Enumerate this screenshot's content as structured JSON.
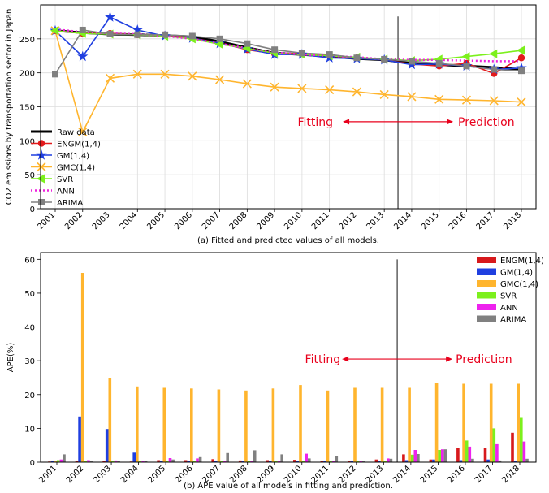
{
  "chart_data": [
    {
      "type": "line",
      "caption": "(a) Fitted and predicted values of all models.",
      "ylabel": "CO2 emissions by transportation sector in Japan",
      "xlabel": "",
      "x": [
        "2001",
        "2002",
        "2003",
        "2004",
        "2005",
        "2006",
        "2007",
        "2008",
        "2009",
        "2010",
        "2011",
        "2012",
        "2013",
        "2014",
        "2015",
        "2016",
        "2017",
        "2018"
      ],
      "ylim": [
        0,
        300
      ],
      "yticks": [
        0,
        50,
        100,
        150,
        200,
        250
      ],
      "grid": true,
      "legend_position": "bottom-left",
      "divider_after": "2013",
      "annotation_left": "Fitting",
      "annotation_right": "Prediction",
      "colors": {
        "divider": "#555555",
        "annotation": "#e8001c"
      },
      "series": [
        {
          "name": "Raw data",
          "color": "#000000",
          "style": "solid-thick",
          "marker": "none",
          "values": [
            262,
            259,
            257,
            256,
            255,
            253,
            246,
            237,
            229,
            227,
            224,
            221,
            219,
            214,
            212,
            210,
            208,
            205
          ]
        },
        {
          "name": "ENGM(1,4)",
          "color": "#e31a1c",
          "style": "solid",
          "marker": "circle",
          "values": [
            262,
            258,
            258,
            256,
            256,
            251,
            244,
            234,
            228,
            229,
            225,
            222,
            219,
            213,
            210,
            214,
            199,
            222
          ]
        },
        {
          "name": "GM(1,4)",
          "color": "#1f3fe0",
          "style": "solid",
          "marker": "star",
          "values": [
            262,
            224,
            282,
            263,
            254,
            251,
            243,
            235,
            227,
            227,
            222,
            221,
            219,
            212,
            213,
            210,
            205,
            207
          ]
        },
        {
          "name": "GMC(1,4)",
          "color": "#ffb52e",
          "style": "solid",
          "marker": "x",
          "values": [
            262,
            113,
            192,
            198,
            198,
            195,
            190,
            184,
            179,
            177,
            175,
            172,
            168,
            165,
            161,
            160,
            159,
            157
          ]
        },
        {
          "name": "SVR",
          "color": "#7cf01d",
          "style": "solid",
          "marker": "triangle-left",
          "values": [
            262,
            258,
            257,
            256,
            254,
            250,
            242,
            236,
            229,
            227,
            225,
            223,
            220,
            218,
            220,
            224,
            228,
            233
          ]
        },
        {
          "name": "ANN",
          "color": "#ee22dd",
          "style": "dotted",
          "marker": "none",
          "values": [
            264,
            260,
            258,
            257,
            254,
            250,
            243,
            236,
            230,
            227,
            225,
            223,
            220,
            219,
            219,
            218,
            217,
            217
          ]
        },
        {
          "name": "ARIMA",
          "color": "#808080",
          "style": "solid",
          "marker": "square",
          "values": [
            198,
            263,
            257,
            256,
            256,
            254,
            250,
            243,
            234,
            229,
            227,
            222,
            220,
            217,
            214,
            210,
            205,
            203
          ]
        }
      ]
    },
    {
      "type": "bar",
      "caption": "(b) APE value of all models in fitting and prediction.",
      "ylabel": "APE(%)",
      "xlabel": "",
      "categories": [
        "2001",
        "2002",
        "2003",
        "2004",
        "2005",
        "2006",
        "2007",
        "2008",
        "2009",
        "2010",
        "2011",
        "2012",
        "2013",
        "2014",
        "2015",
        "2016",
        "2017",
        "2018"
      ],
      "ylim": [
        0,
        62
      ],
      "yticks": [
        0,
        10,
        20,
        30,
        40,
        50,
        60
      ],
      "grid": false,
      "legend_position": "top-right",
      "divider_after": "2013",
      "annotation_left": "Fitting",
      "annotation_right": "Prediction",
      "colors": {
        "divider": "#555555",
        "annotation": "#e8001c"
      },
      "series": [
        {
          "name": "ENGM(1,4)",
          "color": "#d7191c",
          "values": [
            0.2,
            0.3,
            0.3,
            0.2,
            0.6,
            0.6,
            0.9,
            0.5,
            0.6,
            0.7,
            0.3,
            0.4,
            0.8,
            2.3,
            0.8,
            4.1,
            4.1,
            8.7
          ]
        },
        {
          "name": "GM(1,4)",
          "color": "#1f3fe0",
          "values": [
            0.3,
            13.5,
            9.8,
            2.8,
            0.3,
            0.3,
            0.3,
            0.3,
            0.3,
            0.3,
            0.3,
            0.3,
            0.3,
            0.6,
            0.8,
            0.6,
            0.8,
            0.3
          ]
        },
        {
          "name": "GMC(1,4)",
          "color": "#ffb52e",
          "values": [
            0.3,
            56,
            24.8,
            22.4,
            22,
            21.8,
            21.5,
            21.2,
            21.8,
            22.8,
            21.2,
            22,
            22,
            22,
            23.4,
            23.2,
            23.2,
            23.2
          ]
        },
        {
          "name": "SVR",
          "color": "#7cf01d",
          "values": [
            0.6,
            0.3,
            0.3,
            0.3,
            0.3,
            0.3,
            0.3,
            0.3,
            0.3,
            0.3,
            0.3,
            0.3,
            0.3,
            2.2,
            3.6,
            6.4,
            10,
            13.1
          ]
        },
        {
          "name": "ANN",
          "color": "#ee22ee",
          "values": [
            0.8,
            0.6,
            0.5,
            0.3,
            1.2,
            1.1,
            0.4,
            0.3,
            0.3,
            2.5,
            0.3,
            0.3,
            1.1,
            3.6,
            3.8,
            4.6,
            5.3,
            6.1
          ]
        },
        {
          "name": "ARIMA",
          "color": "#808080",
          "values": [
            2.3,
            0.3,
            0.3,
            0.3,
            0.8,
            1.5,
            2.7,
            3.5,
            2.3,
            1.1,
            1.9,
            0.3,
            1,
            2.4,
            3.8,
            1,
            0.5,
            1
          ]
        }
      ]
    }
  ]
}
